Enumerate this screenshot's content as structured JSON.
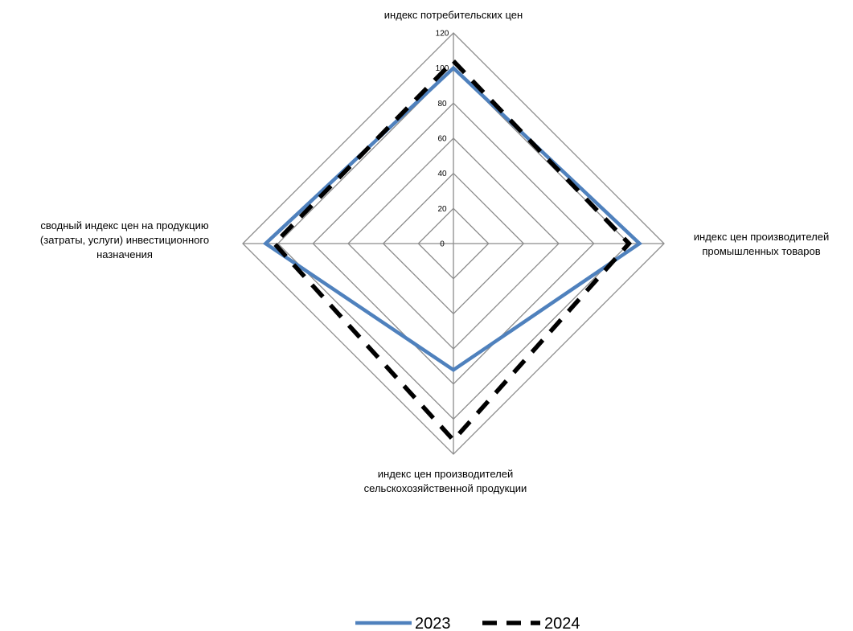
{
  "chart_data": {
    "type": "radar",
    "axes": [
      {
        "label_lines": [
          "индекс потребительских цен"
        ]
      },
      {
        "label_lines": [
          "индекс цен производителей",
          "промышленных товаров"
        ]
      },
      {
        "label_lines": [
          "индекс цен производителей",
          "сельскохозяйственной продукции"
        ]
      },
      {
        "label_lines": [
          "сводный индекс цен на продукцию",
          "(затраты, услуги) инвестиционного",
          "назначения"
        ]
      }
    ],
    "r_ticks": [
      0,
      20,
      40,
      60,
      80,
      100,
      120
    ],
    "r_lim": [
      0,
      120
    ],
    "series": [
      {
        "name": "2023",
        "values": [
          100,
          106,
          72,
          107
        ],
        "color": "#4f81bd",
        "dash": "solid"
      },
      {
        "name": "2024",
        "values": [
          104,
          100,
          112,
          102
        ],
        "color": "#000000",
        "dash": "dashed"
      }
    ],
    "legend_position": "bottom",
    "grid": true
  }
}
